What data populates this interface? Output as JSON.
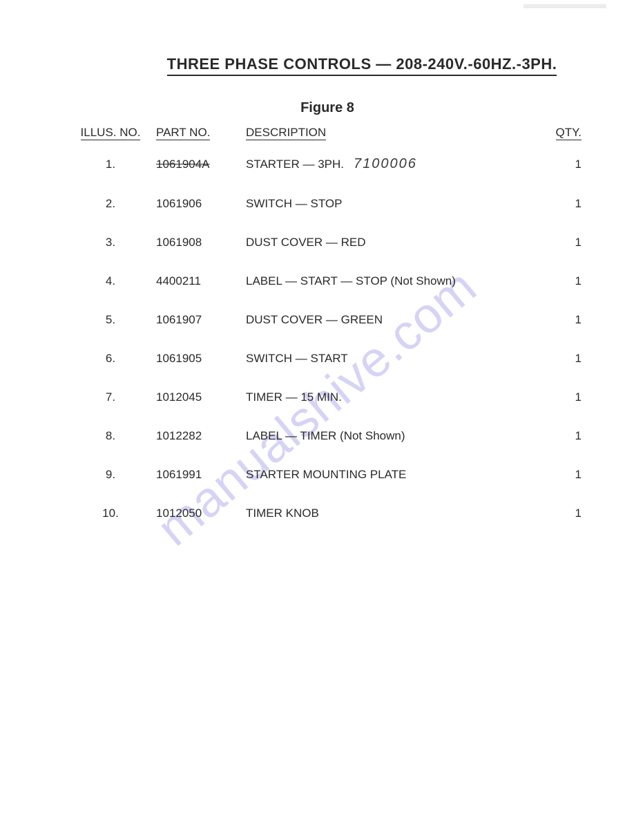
{
  "watermark": "manualshive.com",
  "title": "THREE PHASE CONTROLS — 208-240V.-60HZ.-3PH.",
  "figure_label": "Figure 8",
  "headers": {
    "illus": "ILLUS. NO.",
    "part": "PART NO.",
    "desc": "DESCRIPTION",
    "qty": "QTY."
  },
  "handwritten_part": "7100006",
  "rows": [
    {
      "illus": "1.",
      "part": "1061904A",
      "part_struck": true,
      "desc": "STARTER — 3PH.",
      "has_handwritten": true,
      "qty": "1"
    },
    {
      "illus": "2.",
      "part": "1061906",
      "part_struck": false,
      "desc": "SWITCH — STOP",
      "qty": "1"
    },
    {
      "illus": "3.",
      "part": "1061908",
      "part_struck": false,
      "desc": "DUST COVER — RED",
      "qty": "1"
    },
    {
      "illus": "4.",
      "part": "4400211",
      "part_struck": false,
      "desc": "LABEL — START — STOP (Not Shown)",
      "qty": "1"
    },
    {
      "illus": "5.",
      "part": "1061907",
      "part_struck": false,
      "desc": "DUST COVER — GREEN",
      "qty": "1"
    },
    {
      "illus": "6.",
      "part": "1061905",
      "part_struck": false,
      "desc": "SWITCH — START",
      "qty": "1"
    },
    {
      "illus": "7.",
      "part": "1012045",
      "part_struck": false,
      "desc": "TIMER — 15 MIN.",
      "qty": "1"
    },
    {
      "illus": "8.",
      "part": "1012282",
      "part_struck": false,
      "desc": "LABEL — TIMER (Not Shown)",
      "qty": "1"
    },
    {
      "illus": "9.",
      "part": "1061991",
      "part_struck": false,
      "desc": "STARTER MOUNTING PLATE",
      "qty": "1"
    },
    {
      "illus": "10.",
      "part": "1012050",
      "part_struck": false,
      "desc": "TIMER KNOB",
      "qty": "1"
    }
  ],
  "colors": {
    "text": "#2a2a2a",
    "watermark": "#8a84e6",
    "background": "#ffffff"
  }
}
